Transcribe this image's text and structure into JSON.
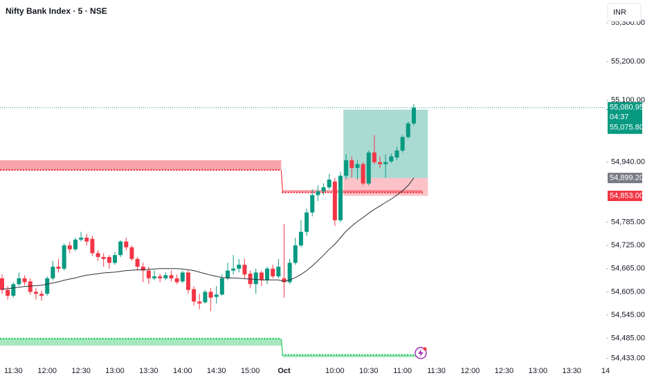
{
  "chart_data": {
    "type": "candlestick",
    "title": "Nifty Bank Index · 5 · NSE",
    "currency": "INR",
    "up_color": "#089981",
    "down_color": "#f23645",
    "categories": [
      null,
      null,
      "11:30",
      null,
      null,
      null,
      null,
      null,
      "12:00",
      null,
      null,
      null,
      null,
      null,
      "12:30",
      null,
      null,
      null,
      null,
      null,
      "13:00",
      null,
      null,
      null,
      null,
      null,
      "13:30",
      null,
      null,
      null,
      null,
      null,
      "14:00",
      null,
      null,
      null,
      null,
      null,
      "14:30",
      null,
      null,
      null,
      null,
      null,
      "15:00",
      null,
      null,
      null,
      null,
      null,
      "Oct",
      null,
      null,
      null,
      null,
      null,
      null,
      null,
      null,
      "10:00",
      null,
      null,
      null,
      null,
      null,
      "10:30",
      null,
      null,
      null,
      null,
      null,
      "11:00",
      null,
      null,
      null,
      null,
      null,
      "11:30",
      null,
      null,
      null,
      null,
      null,
      "12:00",
      null,
      null,
      null,
      null,
      null,
      "12:30",
      null,
      null,
      null,
      null,
      null,
      "13:00",
      null,
      null,
      null,
      null,
      null,
      "13:30",
      null,
      null,
      null,
      null,
      null,
      "14"
    ],
    "open": [
      54640,
      54610,
      54595,
      54625,
      54640,
      54632,
      54605,
      54600,
      54600,
      54640,
      54670,
      54665,
      54725,
      54715,
      54740,
      54745,
      54742,
      54705,
      54695,
      54695,
      54680,
      54700,
      54735,
      54720,
      54690,
      54670,
      54660,
      54640,
      54645,
      54640,
      54648,
      54640,
      54632,
      54655,
      54612,
      54580,
      54578,
      54605,
      54592,
      54598,
      54640,
      54660,
      54665,
      54675,
      54652,
      54625,
      54655,
      54635,
      54665,
      54645,
      54640,
      54630,
      54680,
      54725,
      54760,
      54810,
      54855,
      54865,
      54875,
      54890,
      54790,
      54905,
      54945,
      54925,
      54935,
      54885,
      54965,
      54940,
      54935,
      54942,
      54952,
      54970,
      55005,
      55040,
      null,
      null,
      null,
      null,
      null,
      null,
      null,
      null,
      null,
      null,
      null,
      null,
      null,
      null,
      null,
      null,
      null,
      null,
      null,
      null,
      null,
      null,
      null,
      null,
      null,
      null,
      null,
      null,
      null,
      null,
      null,
      null,
      null,
      null
    ],
    "high": [
      54650,
      54620,
      54630,
      54655,
      54648,
      54640,
      54615,
      54608,
      54645,
      54685,
      54690,
      54730,
      54735,
      54745,
      54760,
      54755,
      54750,
      54712,
      54705,
      54700,
      54708,
      54738,
      54745,
      54725,
      54695,
      54680,
      54670,
      54660,
      54652,
      54655,
      54660,
      54650,
      54660,
      54660,
      54620,
      54600,
      54610,
      54615,
      54620,
      54650,
      54680,
      54700,
      54690,
      54690,
      54660,
      54665,
      54660,
      54670,
      54675,
      54690,
      54780,
      54690,
      54745,
      54790,
      54820,
      54870,
      54880,
      54885,
      54910,
      54900,
      54915,
      54960,
      54955,
      54945,
      54940,
      54970,
      55010,
      54955,
      54960,
      54962,
      54980,
      55010,
      55045,
      55090,
      null,
      null,
      null,
      null,
      null,
      null,
      null,
      null,
      null,
      null,
      null,
      null,
      null,
      null,
      null,
      null,
      null,
      null,
      null,
      null,
      null,
      null,
      null,
      null,
      null,
      null,
      null,
      null,
      null,
      null,
      null,
      null,
      null,
      null
    ],
    "low": [
      54600,
      54585,
      54590,
      54620,
      54622,
      54598,
      54585,
      54582,
      54595,
      54635,
      54655,
      54660,
      54705,
      54710,
      54735,
      54725,
      54698,
      54685,
      54670,
      54665,
      54675,
      54695,
      54712,
      54685,
      54660,
      54630,
      54625,
      54635,
      54630,
      54635,
      54632,
      54625,
      54628,
      54600,
      54570,
      54560,
      54575,
      54555,
      54575,
      54595,
      54635,
      54650,
      54655,
      54640,
      54615,
      54600,
      54620,
      54625,
      54640,
      54640,
      54590,
      54625,
      54675,
      54720,
      54750,
      54800,
      54840,
      54855,
      54870,
      54775,
      54785,
      54895,
      54900,
      54895,
      54880,
      54880,
      54935,
      54925,
      54900,
      54938,
      54945,
      54965,
      55000,
      55035,
      null,
      null,
      null,
      null,
      null,
      null,
      null,
      null,
      null,
      null,
      null,
      null,
      null,
      null,
      null,
      null,
      null,
      null,
      null,
      null,
      null,
      null,
      null,
      null,
      null,
      null,
      null,
      null,
      null,
      null,
      null,
      null,
      null,
      null
    ],
    "close": [
      54610,
      54595,
      54625,
      54640,
      54630,
      54605,
      54600,
      54595,
      54640,
      54670,
      54665,
      54725,
      54715,
      54740,
      54745,
      54735,
      54705,
      54695,
      54690,
      54680,
      54700,
      54735,
      54720,
      54690,
      54670,
      54660,
      54640,
      54645,
      54640,
      54648,
      54640,
      54630,
      54655,
      54610,
      54580,
      54575,
      54605,
      54590,
      54598,
      54640,
      54660,
      54665,
      54675,
      54650,
      54625,
      54655,
      54635,
      54665,
      54645,
      54670,
      54630,
      54680,
      54725,
      54760,
      54810,
      54855,
      54865,
      54875,
      54895,
      54790,
      54905,
      54945,
      54925,
      54935,
      54885,
      54965,
      54940,
      54935,
      54940,
      54955,
      54970,
      55005,
      55040,
      55080.95,
      null,
      null,
      null,
      null,
      null,
      null,
      null,
      null,
      null,
      null,
      null,
      null,
      null,
      null,
      null,
      null,
      null,
      null,
      null,
      null,
      null,
      null,
      null,
      null,
      null,
      null,
      null,
      null,
      null,
      null,
      null,
      null,
      null,
      null
    ],
    "ma": {
      "color": "#2a2e39",
      "last_label": "54,899.20",
      "values": [
        54612,
        54613,
        54615,
        54617,
        54619,
        54620,
        54621,
        54622,
        54625,
        54628,
        54631,
        54635,
        54638,
        54641,
        54645,
        54648,
        54650,
        54652,
        54654,
        54655,
        54656,
        54658,
        54660,
        54661,
        54662,
        54662,
        54663,
        54664,
        54665,
        54665,
        54665,
        54665,
        54664,
        54662,
        54660,
        54656,
        54652,
        54648,
        54645,
        54642,
        54641,
        54641,
        54640,
        54639,
        54638,
        54637,
        54636,
        54636,
        54636,
        54636,
        54632,
        54636,
        54642,
        54650,
        54660,
        54672,
        54686,
        54700,
        54715,
        54728,
        54745,
        54762,
        54775,
        54787,
        54797,
        54808,
        54818,
        54827,
        54836,
        54845,
        54855,
        54866,
        54880,
        54899.2,
        null,
        null,
        null,
        null,
        null,
        null,
        null,
        null,
        null,
        null,
        null,
        null,
        null,
        null,
        null,
        null,
        null,
        null,
        null,
        null,
        null,
        null,
        null,
        null,
        null,
        null,
        null,
        null,
        null,
        null,
        null,
        null,
        null,
        null
      ]
    },
    "resistance": {
      "color": "#f23645",
      "bands": [
        [
          54945,
          54920
        ],
        [
          54868,
          54862
        ]
      ]
    },
    "support": {
      "color": "#22c55e",
      "bands": [
        [
          54484,
          54466
        ],
        [
          54442,
          54436
        ]
      ]
    },
    "position": {
      "target": {
        "value": 55075.8,
        "label": "55,075.80"
      },
      "entry": 54899.2,
      "stop": {
        "value": 54853,
        "label": "54,853.00"
      }
    },
    "current": {
      "value": 55080.95,
      "label": "55,080.95",
      "countdown": "04:37"
    },
    "ylim": [
      54413,
      55359
    ],
    "yticks": [
      {
        "value": 55300,
        "label": "55,300.00"
      },
      {
        "value": 55200,
        "label": "55,200.00"
      },
      {
        "value": 55100,
        "label": "55,100.00"
      },
      {
        "value": 54940,
        "label": "54,940.00"
      },
      {
        "value": 54785,
        "label": "54,785.00"
      },
      {
        "value": 54725,
        "label": "54,725.00"
      },
      {
        "value": 54665,
        "label": "54,665.00"
      },
      {
        "value": 54605,
        "label": "54,605.00"
      },
      {
        "value": 54545,
        "label": "54,545.00"
      },
      {
        "value": 54485,
        "label": "54,485.00"
      },
      {
        "value": 54433,
        "label": "54,433.00"
      }
    ]
  }
}
